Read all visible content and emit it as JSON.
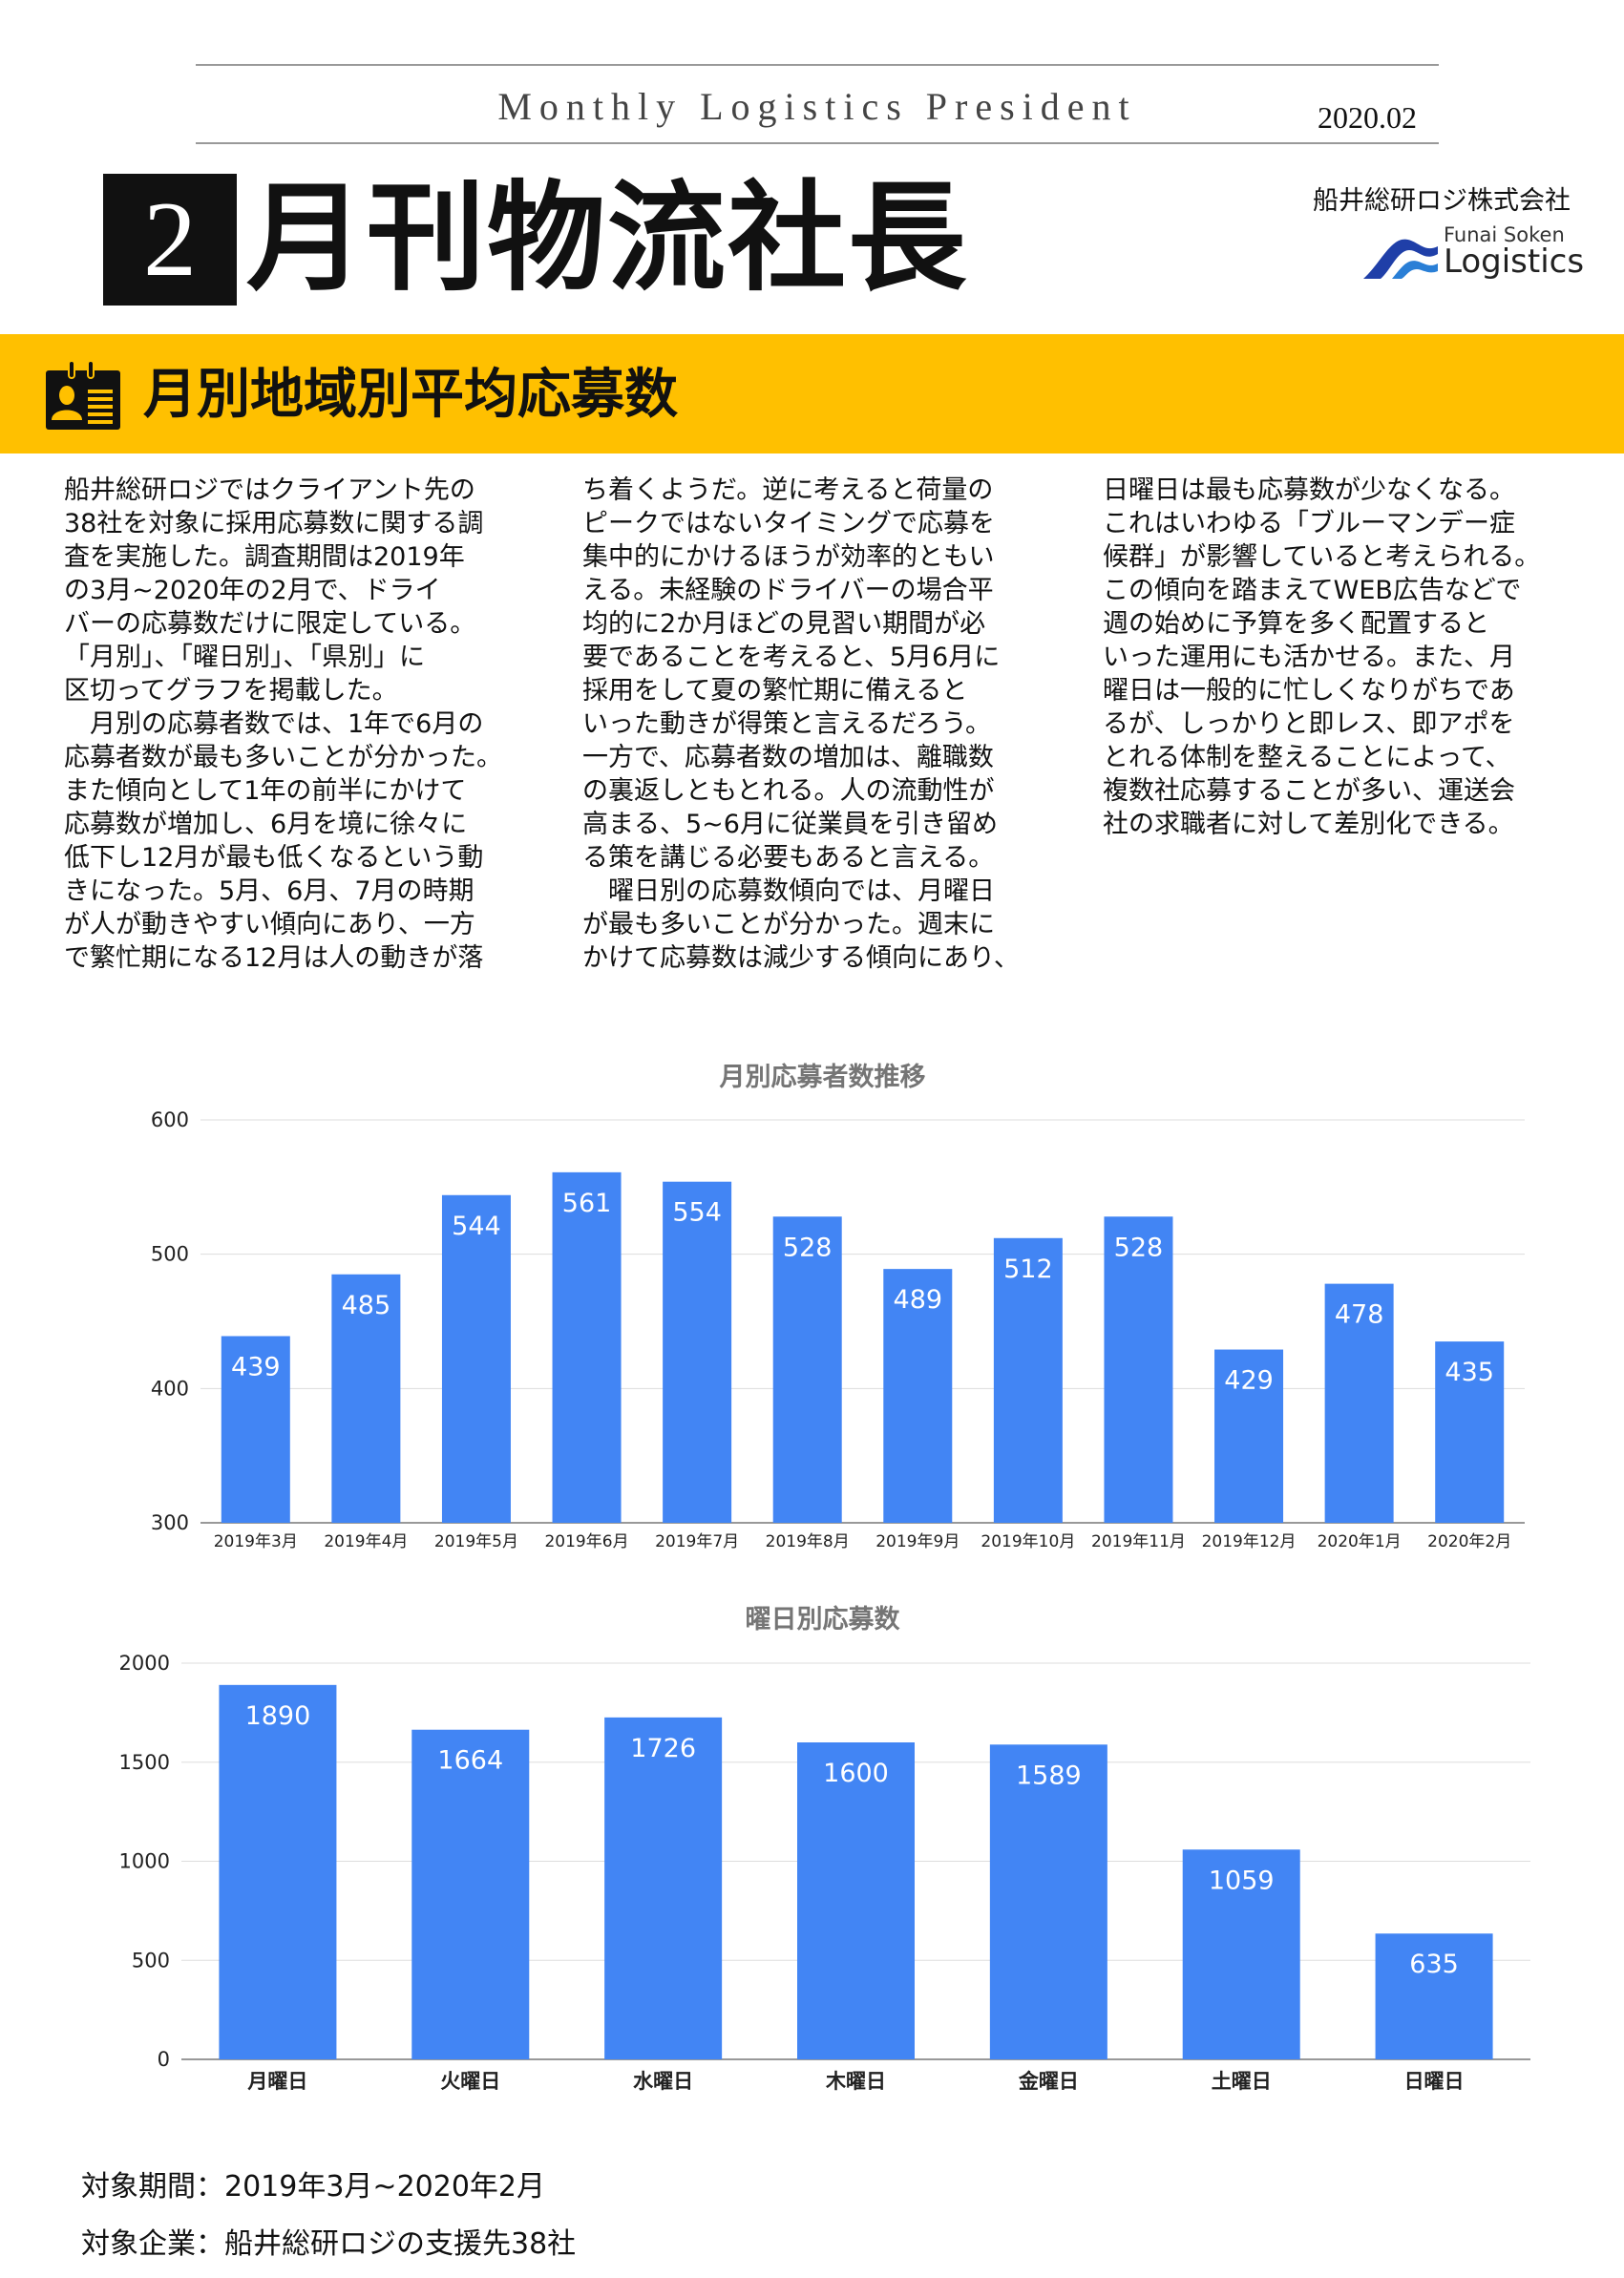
{
  "header": {
    "subtitle": "Monthly Logistics President",
    "date": "2020.02",
    "issue_number": "2",
    "title": "月刊物流社長",
    "company": "船井総研ロジ株式会社",
    "logo_line1": "Funai Soken",
    "logo_line2": "Logistics"
  },
  "section": {
    "title": "月別地域別平均応募数",
    "icon": "id-card-icon"
  },
  "body": {
    "columns": [
      "船井総研ロジではクライアント先の\n38社を対象に採用応募数に関する調\n査を実施した。調査期間は2019年\nの3月~2020年の2月で、ドライ\nバーの応募数だけに限定している。\n「月別」、「曜日別」、「県別」に\n区切ってグラフを掲載した。\n　月別の応募者数では、1年で6月の\n応募者数が最も多いことが分かった。\nまた傾向として1年の前半にかけて\n応募数が増加し、6月を境に徐々に\n低下し12月が最も低くなるという動\nきになった。5月、6月、7月の時期\nが人が動きやすい傾向にあり、一方\nで繁忙期になる12月は人の動きが落",
      "ち着くようだ。逆に考えると荷量の\nピークではないタイミングで応募を\n集中的にかけるほうが効率的ともい\nえる。未経験のドライバーの場合平\n均的に2か月ほどの見習い期間が必\n要であることを考えると、5月6月に\n採用をして夏の繁忙期に備えると\nいった動きが得策と言えるだろう。\n一方で、応募者数の増加は、離職数\nの裏返しともとれる。人の流動性が\n高まる、5~6月に従業員を引き留め\nる策を講じる必要もあると言える。\n　曜日別の応募数傾向では、月曜日\nが最も多いことが分かった。週末に\nかけて応募数は減少する傾向にあり、",
      "日曜日は最も応募数が少なくなる。\nこれはいわゆる「ブルーマンデー症\n候群」が影響していると考えられる。\nこの傾向を踏まえてWEB広告などで\n週の始めに予算を多く配置すると\nいった運用にも活かせる。また、月\n曜日は一般的に忙しくなりがちであ\nるが、しっかりと即レス、即アポを\nとれる体制を整えることによって、\n複数社応募することが多い、運送会\n社の求職者に対して差別化できる。"
    ]
  },
  "chart_data": [
    {
      "type": "bar",
      "title": "月別応募者数推移",
      "xlabel": "",
      "ylabel": "",
      "ylim": [
        300,
        600
      ],
      "yticks": [
        300,
        400,
        500,
        600
      ],
      "grid": true,
      "color": "#4285F4",
      "categories": [
        "2019年3月",
        "2019年4月",
        "2019年5月",
        "2019年6月",
        "2019年7月",
        "2019年8月",
        "2019年9月",
        "2019年10月",
        "2019年11月",
        "2019年12月",
        "2020年1月",
        "2020年2月"
      ],
      "values": [
        439,
        485,
        544,
        561,
        554,
        528,
        489,
        512,
        528,
        429,
        478,
        435
      ]
    },
    {
      "type": "bar",
      "title": "曜日別応募数",
      "xlabel": "",
      "ylabel": "",
      "ylim": [
        0,
        2000
      ],
      "yticks": [
        0,
        500,
        1000,
        1500,
        2000
      ],
      "grid": true,
      "color": "#4285F4",
      "categories": [
        "月曜日",
        "火曜日",
        "水曜日",
        "木曜日",
        "金曜日",
        "土曜日",
        "日曜日"
      ],
      "values": [
        1890,
        1664,
        1726,
        1600,
        1589,
        1059,
        635
      ]
    }
  ],
  "footer": {
    "period": "対象期間：2019年3月~2020年2月",
    "companies": "対象企業：船井総研ロジの支援先38社"
  },
  "colors": {
    "band": "#FFC000",
    "bar": "#4285F4"
  }
}
